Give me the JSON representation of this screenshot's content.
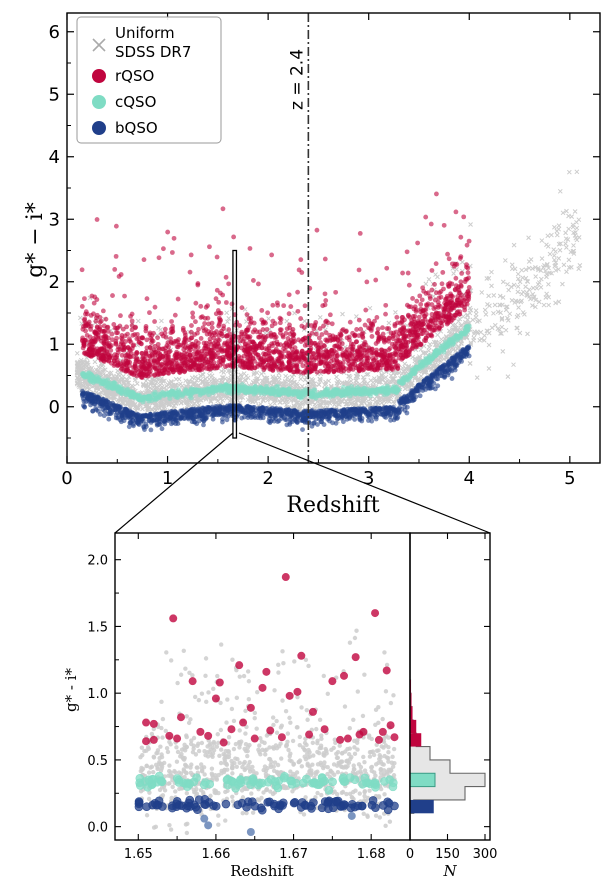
{
  "colors": {
    "uniform": "#cccccc",
    "rqso": "#c0053e",
    "cqso": "#7fdcc4",
    "bqso": "#203f8a",
    "annotation": "#333333"
  },
  "chart_data": [
    {
      "type": "scatter",
      "panel": "main",
      "xlabel": "Redshift",
      "ylabel": "g* − i*",
      "xlim": [
        0,
        5.3
      ],
      "ylim": [
        -0.9,
        6.3
      ],
      "xticks": [
        "0",
        "1",
        "2",
        "3",
        "4",
        "5"
      ],
      "yticks": [
        "0",
        "1",
        "2",
        "3",
        "4",
        "5",
        "6"
      ],
      "legend": {
        "position": "top-left",
        "entries": [
          "Uniform",
          "SDSS DR7",
          "rQSO",
          "cQSO",
          "bQSO"
        ]
      },
      "annotation": {
        "text": "z = 2.4",
        "x": 2.4,
        "style": "dash-dot"
      },
      "zoom_box": {
        "x": [
          1.65,
          1.685
        ],
        "y": [
          -0.5,
          2.5
        ]
      },
      "series": [
        {
          "name": "Uniform SDSS DR7",
          "marker": "x"
        },
        {
          "name": "rQSO",
          "marker": "circle"
        },
        {
          "name": "cQSO",
          "marker": "circle"
        },
        {
          "name": "bQSO",
          "marker": "circle"
        }
      ]
    },
    {
      "type": "scatter",
      "panel": "zoom",
      "xlabel": "Redshift",
      "ylabel": "g* - i*",
      "xlim": [
        1.647,
        1.685
      ],
      "ylim": [
        -0.1,
        2.2
      ],
      "xticks": [
        "1.65",
        "1.66",
        "1.67",
        "1.68"
      ],
      "yticks": [
        "0.0",
        "0.5",
        "1.0",
        "1.5",
        "2.0"
      ],
      "rqso_points": [
        [
          1.651,
          0.78
        ],
        [
          1.651,
          0.64
        ],
        [
          1.652,
          0.65
        ],
        [
          1.652,
          0.77
        ],
        [
          1.654,
          0.68
        ],
        [
          1.6545,
          1.56
        ],
        [
          1.655,
          0.66
        ],
        [
          1.6555,
          0.82
        ],
        [
          1.657,
          1.09
        ],
        [
          1.658,
          0.71
        ],
        [
          1.659,
          0.68
        ],
        [
          1.66,
          0.96
        ],
        [
          1.6605,
          1.08
        ],
        [
          1.661,
          0.63
        ],
        [
          1.662,
          0.73
        ],
        [
          1.663,
          1.21
        ],
        [
          1.6635,
          0.78
        ],
        [
          1.6645,
          0.89
        ],
        [
          1.665,
          0.66
        ],
        [
          1.666,
          1.04
        ],
        [
          1.6665,
          1.16
        ],
        [
          1.667,
          0.72
        ],
        [
          1.6685,
          0.67
        ],
        [
          1.669,
          1.87
        ],
        [
          1.6695,
          0.98
        ],
        [
          1.6705,
          1.01
        ],
        [
          1.671,
          1.28
        ],
        [
          1.672,
          0.69
        ],
        [
          1.6725,
          0.86
        ],
        [
          1.674,
          0.73
        ],
        [
          1.675,
          1.09
        ],
        [
          1.676,
          0.65
        ],
        [
          1.6765,
          1.13
        ],
        [
          1.677,
          0.66
        ],
        [
          1.678,
          1.27
        ],
        [
          1.6785,
          0.69
        ],
        [
          1.679,
          0.71
        ],
        [
          1.6805,
          1.6
        ],
        [
          1.681,
          0.65
        ],
        [
          1.6815,
          0.71
        ],
        [
          1.682,
          1.17
        ],
        [
          1.6825,
          0.76
        ],
        [
          1.683,
          0.67
        ]
      ],
      "cqso_band": {
        "y": 0.33,
        "spread": 0.02,
        "count": 95
      },
      "bqso_band": {
        "y": 0.16,
        "spread": 0.02,
        "count": 90
      },
      "bqso_outliers": [
        [
          1.6585,
          0.06
        ],
        [
          1.659,
          0.01
        ],
        [
          1.6645,
          -0.04
        ],
        [
          1.6775,
          0.08
        ]
      ]
    },
    {
      "type": "bar",
      "panel": "histogram",
      "orientation": "horizontal",
      "xlabel": "N",
      "xlim": [
        0,
        320
      ],
      "xticks": [
        "0",
        "150",
        "300"
      ],
      "bin_edges": [
        0.1,
        0.2,
        0.3,
        0.4,
        0.5,
        0.6,
        0.7,
        0.8,
        0.9,
        1.0,
        1.1
      ],
      "uniform_counts": [
        15,
        220,
        300,
        160,
        80,
        25,
        12,
        8,
        4,
        2
      ],
      "rqso_bins": {
        "bin_edges": [
          0.6,
          0.7,
          0.8,
          0.9,
          1.0,
          1.1,
          1.2
        ],
        "counts": [
          45,
          25,
          10,
          6,
          4,
          2
        ]
      },
      "cqso_bins": {
        "bin_edges": [
          0.3,
          0.4
        ],
        "counts": [
          100
        ]
      },
      "bqso_bins": {
        "bin_edges": [
          0.1,
          0.2
        ],
        "counts": [
          95
        ]
      }
    }
  ]
}
